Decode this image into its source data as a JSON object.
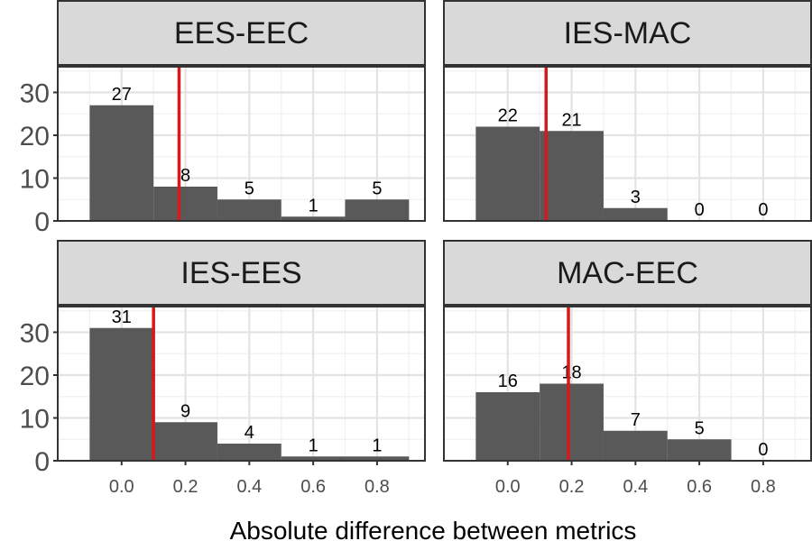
{
  "chart_data": {
    "type": "bar",
    "xlabel": "Absolute difference between metrics",
    "ylabel": "",
    "xlim": [
      -0.2,
      0.95
    ],
    "ylim": [
      0,
      36
    ],
    "x_ticks": [
      "0.0",
      "0.2",
      "0.4",
      "0.6",
      "0.8"
    ],
    "x_tick_values": [
      0.0,
      0.2,
      0.4,
      0.6,
      0.8
    ],
    "y_ticks": [
      "0",
      "10",
      "20",
      "30"
    ],
    "y_tick_values": [
      0,
      10,
      20,
      30
    ],
    "bin_edges": [
      -0.1,
      0.1,
      0.3,
      0.5,
      0.7,
      0.9
    ],
    "grid": true,
    "bar_color": "#595959",
    "vline_color": "#d7191c",
    "panels": [
      {
        "title": "EES-EEC",
        "values": [
          27,
          8,
          5,
          1,
          5
        ],
        "labels": [
          "27",
          "8",
          "5",
          "1",
          "5"
        ],
        "vline": 0.18
      },
      {
        "title": "IES-MAC",
        "values": [
          22,
          21,
          3,
          0,
          0
        ],
        "labels": [
          "22",
          "21",
          "3",
          "0",
          "0"
        ],
        "vline": 0.12
      },
      {
        "title": "IES-EES",
        "values": [
          31,
          9,
          4,
          1,
          1
        ],
        "labels": [
          "31",
          "9",
          "4",
          "1",
          "1"
        ],
        "vline": 0.1
      },
      {
        "title": "MAC-EEC",
        "values": [
          16,
          18,
          7,
          5,
          0
        ],
        "labels": [
          "16",
          "18",
          "7",
          "5",
          "0"
        ],
        "vline": 0.19
      }
    ]
  }
}
